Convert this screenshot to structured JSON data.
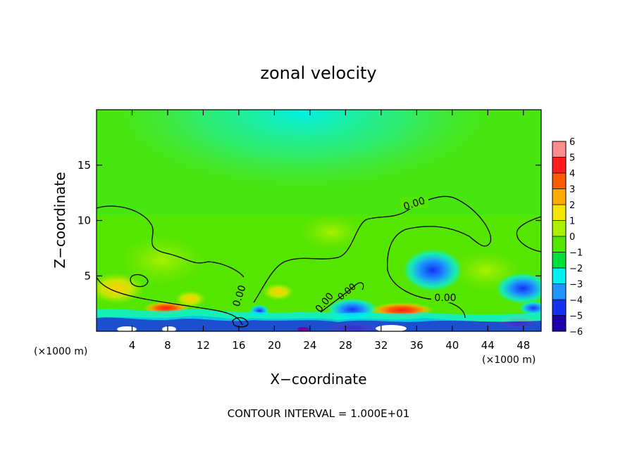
{
  "chart_data": {
    "type": "heatmap",
    "title": "zonal velocity",
    "xlabel": "X−coordinate",
    "ylabel": "Z−coordinate",
    "x_unit_left": "(×1000 m)",
    "x_unit_right": "(×1000 m)",
    "footer": "CONTOUR INTERVAL = 1.000E+01",
    "xlim": [
      0,
      50
    ],
    "ylim": [
      0,
      20
    ],
    "x_ticks": [
      4,
      8,
      12,
      16,
      20,
      24,
      28,
      32,
      36,
      40,
      44,
      48
    ],
    "y_ticks": [
      5,
      10,
      15
    ],
    "colorbar": {
      "levels": [
        6,
        5,
        4,
        3,
        2,
        1,
        0,
        -1,
        -2,
        -3,
        -4,
        -5,
        -6
      ],
      "labels": [
        "6",
        "5",
        "4",
        "3",
        "2",
        "1",
        "0",
        "−1",
        "−2",
        "−3",
        "−4",
        "−5",
        "−6"
      ],
      "colors": [
        "#ff8c8c",
        "#ff1e1e",
        "#ff5a00",
        "#ffaa00",
        "#f5e600",
        "#aaf000",
        "#55e600",
        "#00e03c",
        "#00f0f0",
        "#1e96ff",
        "#1432f0",
        "#1e00aa",
        "#640096"
      ]
    },
    "contour_labels": [
      "0.00",
      "0.00",
      "0.00",
      "0.00",
      "0.00"
    ],
    "background_value": 0.3,
    "top_value": -1.6
  }
}
